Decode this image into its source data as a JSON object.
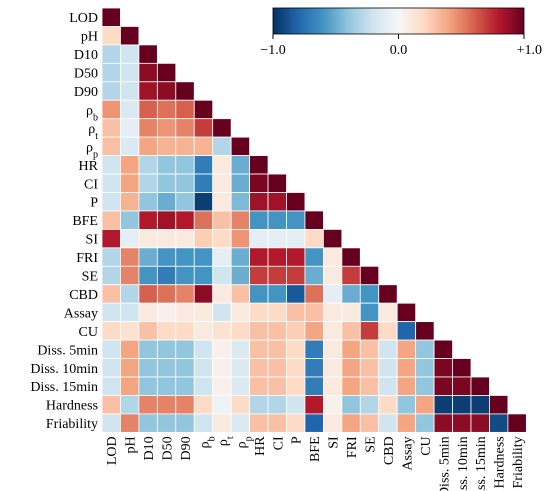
{
  "chart_data": {
    "type": "heatmap",
    "title": "",
    "xlabel": "",
    "ylabel": "",
    "layout": "lower-triangle",
    "variables": [
      {
        "id": "LOD",
        "label": "LOD"
      },
      {
        "id": "pH",
        "label": "pH"
      },
      {
        "id": "D10",
        "label": "D10"
      },
      {
        "id": "D50",
        "label": "D50"
      },
      {
        "id": "D90",
        "label": "D90"
      },
      {
        "id": "rho_b",
        "label": "ρ",
        "sub": "b"
      },
      {
        "id": "rho_t",
        "label": "ρ",
        "sub": "t"
      },
      {
        "id": "rho_p",
        "label": "ρ",
        "sub": "p"
      },
      {
        "id": "HR",
        "label": "HR"
      },
      {
        "id": "CI",
        "label": "CI"
      },
      {
        "id": "P",
        "label": "P"
      },
      {
        "id": "BFE",
        "label": "BFE"
      },
      {
        "id": "SI",
        "label": "SI"
      },
      {
        "id": "FRI",
        "label": "FRI"
      },
      {
        "id": "SE",
        "label": "SE"
      },
      {
        "id": "CBD",
        "label": "CBD"
      },
      {
        "id": "Assay",
        "label": "Assay"
      },
      {
        "id": "CU",
        "label": "CU"
      },
      {
        "id": "Diss5",
        "label": "Diss. 5min"
      },
      {
        "id": "Diss10",
        "label": "Diss. 10min"
      },
      {
        "id": "Diss15",
        "label": "Diss. 15min"
      },
      {
        "id": "Hardness",
        "label": "Hardness"
      },
      {
        "id": "Friability",
        "label": "Friability"
      }
    ],
    "colorbar": {
      "min": -1.0,
      "max": 1.0,
      "ticks": [
        -1.0,
        0.0,
        1.0
      ],
      "tick_labels": [
        "−1.0",
        "0.0",
        "+1.0"
      ],
      "colormap": "RdBu_r",
      "stops": [
        "#053061",
        "#2166ac",
        "#4393c3",
        "#92c5de",
        "#d1e5f0",
        "#f7f7f7",
        "#fddbc7",
        "#f4a582",
        "#d6604d",
        "#b2182b",
        "#67001f"
      ]
    },
    "matrix": [
      [
        1.0
      ],
      [
        0.2,
        1.0
      ],
      [
        -0.3,
        -0.2,
        1.0
      ],
      [
        -0.3,
        -0.2,
        0.9,
        1.0
      ],
      [
        -0.3,
        -0.2,
        0.85,
        0.9,
        1.0
      ],
      [
        0.45,
        -0.15,
        0.6,
        0.55,
        0.6,
        1.0
      ],
      [
        0.3,
        -0.1,
        0.5,
        0.45,
        0.5,
        0.7,
        1.0
      ],
      [
        0.3,
        -0.15,
        0.4,
        0.35,
        0.35,
        0.35,
        -0.3,
        1.0
      ],
      [
        -0.2,
        0.4,
        -0.3,
        -0.4,
        -0.4,
        -0.7,
        0.1,
        -0.5,
        1.0
      ],
      [
        -0.2,
        0.4,
        -0.3,
        -0.4,
        -0.4,
        -0.7,
        0.1,
        -0.5,
        0.95,
        1.0
      ],
      [
        -0.2,
        0.35,
        -0.4,
        -0.5,
        -0.4,
        -0.95,
        0.1,
        -0.45,
        0.85,
        0.85,
        1.0
      ],
      [
        0.3,
        -0.4,
        0.8,
        0.85,
        0.8,
        0.55,
        0.3,
        0.5,
        -0.6,
        -0.6,
        -0.6,
        1.0
      ],
      [
        0.8,
        -0.1,
        0.1,
        0.1,
        0.1,
        0.25,
        0.2,
        0.45,
        -0.1,
        -0.1,
        -0.1,
        0.2,
        1.0
      ],
      [
        -0.3,
        0.5,
        -0.5,
        -0.6,
        -0.6,
        -0.6,
        -0.1,
        -0.5,
        0.8,
        0.8,
        0.8,
        -0.6,
        0.1,
        1.0
      ],
      [
        -0.3,
        0.5,
        -0.6,
        -0.7,
        -0.6,
        -0.6,
        -0.2,
        -0.5,
        0.7,
        0.7,
        0.7,
        -0.5,
        0.1,
        0.7,
        1.0
      ],
      [
        0.3,
        -0.3,
        0.6,
        0.55,
        0.5,
        0.9,
        0.1,
        0.3,
        -0.6,
        -0.6,
        -0.85,
        0.55,
        -0.1,
        -0.5,
        -0.6,
        1.0
      ],
      [
        -0.2,
        -0.2,
        0.1,
        0.05,
        0.1,
        0.1,
        -0.2,
        0.1,
        0.2,
        0.2,
        0.3,
        0.3,
        0.1,
        0.1,
        -0.6,
        0.1,
        1.0
      ],
      [
        0.2,
        0.15,
        0.3,
        0.2,
        0.2,
        0.1,
        0.15,
        0.2,
        0.3,
        0.3,
        0.25,
        0.4,
        0.1,
        0.3,
        0.7,
        0.2,
        -0.8,
        1.0
      ],
      [
        -0.2,
        0.4,
        -0.4,
        -0.4,
        -0.4,
        -0.2,
        0.05,
        -0.15,
        0.3,
        0.3,
        0.2,
        -0.7,
        0.1,
        0.4,
        0.3,
        -0.2,
        0.4,
        -0.4,
        1.0
      ],
      [
        -0.2,
        0.4,
        -0.4,
        -0.4,
        -0.4,
        -0.2,
        0.05,
        -0.15,
        0.3,
        0.3,
        0.2,
        -0.7,
        0.1,
        0.4,
        0.3,
        -0.2,
        0.4,
        -0.4,
        0.95,
        1.0
      ],
      [
        -0.2,
        0.4,
        -0.4,
        -0.4,
        -0.4,
        -0.2,
        0.05,
        -0.15,
        0.3,
        0.3,
        0.2,
        -0.7,
        0.1,
        0.4,
        0.3,
        -0.2,
        0.4,
        -0.4,
        0.95,
        0.95,
        1.0
      ],
      [
        0.3,
        -0.3,
        0.5,
        0.5,
        0.5,
        0.2,
        -0.05,
        0.2,
        -0.3,
        -0.3,
        -0.2,
        0.8,
        0.05,
        -0.4,
        -0.3,
        0.2,
        -0.4,
        0.4,
        -0.95,
        -0.95,
        -0.95,
        1.0
      ],
      [
        -0.2,
        0.5,
        -0.4,
        -0.4,
        -0.4,
        -0.2,
        0.1,
        -0.15,
        0.3,
        0.3,
        0.2,
        -0.8,
        0.1,
        0.4,
        0.3,
        -0.2,
        0.4,
        -0.4,
        0.9,
        0.9,
        0.9,
        -0.9,
        1.0
      ]
    ]
  }
}
